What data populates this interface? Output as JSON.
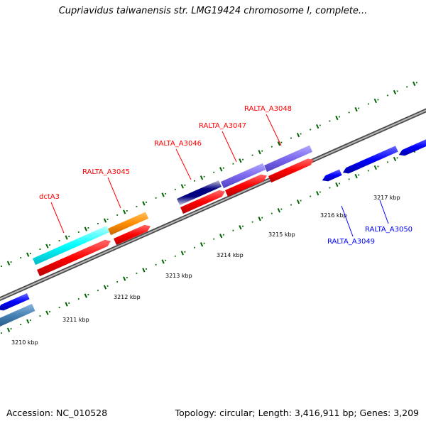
{
  "title": "Cupriavidus taiwanensis str. LMG19424 chromosome I, complete...",
  "footer": {
    "accession": "Accession: NC_010528",
    "summary": "Topology: circular; Length: 3,416,911 bp; Genes: 3,209"
  },
  "scale": {
    "ticks": [
      "3210 kbp",
      "3211 kbp",
      "3212 kbp",
      "3213 kbp",
      "3214 kbp",
      "3215 kbp",
      "3216 kbp",
      "3217 kbp"
    ]
  },
  "genes": {
    "forward": [
      {
        "label": "dctA3",
        "color": "#ff0000"
      },
      {
        "label": "RALTA_A3045",
        "color": "#ff0000"
      },
      {
        "label": "RALTA_A3046",
        "color": "#ff0000"
      },
      {
        "label": "RALTA_A3047",
        "color": "#ff0000"
      },
      {
        "label": "RALTA_A3048",
        "color": "#ff0000"
      }
    ],
    "reverse": [
      {
        "label": "RALTA_A3049",
        "color": "#0000ff"
      },
      {
        "label": "RALTA_A3050",
        "color": "#0000ff"
      }
    ]
  },
  "colors": {
    "cds": "#ff0000",
    "reverse_cds": "#0000ff",
    "cyan_feature": "#00ffff",
    "orange_feature": "#ff8c00",
    "purple_feature": "#7b68ee",
    "steel_feature": "#4682b4",
    "ticks": "#006400",
    "backbone": "#808080"
  }
}
